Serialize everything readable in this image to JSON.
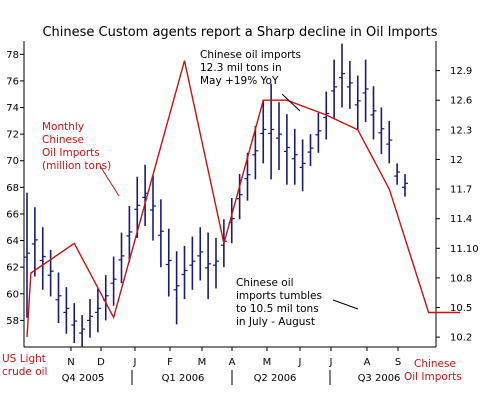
{
  "chart_data": {
    "type": "line",
    "title": "Chinese Custom agents report a Sharp decline in Oil Imports",
    "left_axis_title": [
      "US Light",
      "crude oil"
    ],
    "right_axis_title": [
      "Chinese",
      "Oil Imports"
    ],
    "left_axis": {
      "min": 56,
      "max": 79,
      "ticks": [
        58,
        60,
        62,
        64,
        66,
        68,
        70,
        72,
        74,
        76,
        78
      ]
    },
    "right_axis": {
      "min": 10.1,
      "max": 13.2,
      "ticks": [
        "10.2",
        "10.5",
        "10.8",
        "11.10",
        "11.4",
        "11.7",
        "12",
        "12.3",
        "12.6",
        "12.9"
      ]
    },
    "month_labels": [
      "N",
      "D",
      "J",
      "F",
      "M",
      "A",
      "M",
      "J",
      "J",
      "A",
      "S"
    ],
    "quarter_labels": [
      "Q4 2005",
      "Q1 2006",
      "Q2 2006",
      "Q3 2006"
    ],
    "colors": {
      "price_bars": "#1a1a7a",
      "imports_line": "#cc1111",
      "axis_title": "#cc1111",
      "annotation": "#000000"
    },
    "annotations": {
      "monthly": [
        "Monthly",
        "Chinese",
        "Oil Imports",
        "(million tons)"
      ],
      "top": [
        "Chinese oil imports",
        "12.3 mil tons in",
        "May +19% YoY"
      ],
      "bottom": [
        "Chinese oil",
        "imports tumbles",
        "to 10.5 mil tons",
        "in July - August"
      ]
    },
    "series": [
      {
        "name": "US Light crude oil",
        "kind": "weekly high-low bars",
        "data": [
          {
            "h": 67.6,
            "l": 58.2
          },
          {
            "h": 66.5,
            "l": 61.3
          },
          {
            "h": 65.0,
            "l": 60.3
          },
          {
            "h": 63.3,
            "l": 59.8
          },
          {
            "h": 61.6,
            "l": 57.8
          },
          {
            "h": 60.5,
            "l": 57.0
          },
          {
            "h": 59.3,
            "l": 56.3
          },
          {
            "h": 58.4,
            "l": 56.0
          },
          {
            "h": 59.6,
            "l": 56.7
          },
          {
            "h": 60.4,
            "l": 57.1
          },
          {
            "h": 61.4,
            "l": 58.0
          },
          {
            "h": 62.8,
            "l": 59.1
          },
          {
            "h": 64.6,
            "l": 60.8
          },
          {
            "h": 66.6,
            "l": 62.4
          },
          {
            "h": 68.8,
            "l": 64.2
          },
          {
            "h": 69.7,
            "l": 65.1
          },
          {
            "h": 68.9,
            "l": 64.0
          },
          {
            "h": 67.1,
            "l": 62.0
          },
          {
            "h": 64.9,
            "l": 59.8
          },
          {
            "h": 63.2,
            "l": 57.7
          },
          {
            "h": 63.6,
            "l": 59.6
          },
          {
            "h": 64.3,
            "l": 60.3
          },
          {
            "h": 65.0,
            "l": 61.0
          },
          {
            "h": 64.6,
            "l": 59.6
          },
          {
            "h": 64.2,
            "l": 60.4
          },
          {
            "h": 65.6,
            "l": 62.0
          },
          {
            "h": 67.2,
            "l": 63.8
          },
          {
            "h": 69.0,
            "l": 65.6
          },
          {
            "h": 70.6,
            "l": 67.0
          },
          {
            "h": 72.6,
            "l": 68.6
          },
          {
            "h": 74.6,
            "l": 69.8
          },
          {
            "h": 75.8,
            "l": 68.6
          },
          {
            "h": 74.4,
            "l": 69.3
          },
          {
            "h": 73.5,
            "l": 68.2
          },
          {
            "h": 72.4,
            "l": 68.2
          },
          {
            "h": 71.6,
            "l": 67.7
          },
          {
            "h": 72.0,
            "l": 69.6
          },
          {
            "h": 73.6,
            "l": 70.6
          },
          {
            "h": 75.2,
            "l": 71.6
          },
          {
            "h": 77.6,
            "l": 73.2
          },
          {
            "h": 78.8,
            "l": 74.0
          },
          {
            "h": 77.5,
            "l": 73.9
          },
          {
            "h": 76.4,
            "l": 72.3
          },
          {
            "h": 77.6,
            "l": 72.9
          },
          {
            "h": 75.6,
            "l": 71.6
          },
          {
            "h": 74.0,
            "l": 70.5
          },
          {
            "h": 73.0,
            "l": 69.8
          },
          {
            "h": 69.8,
            "l": 68.2
          },
          {
            "h": 69.0,
            "l": 67.3
          }
        ]
      },
      {
        "name": "Chinese Oil Imports",
        "kind": "monthly line",
        "points": [
          {
            "t": 0,
            "v": 10.2
          },
          {
            "t": 0.5,
            "v": 10.85
          },
          {
            "t": 6,
            "v": 11.15
          },
          {
            "t": 11,
            "v": 10.4
          },
          {
            "t": 20,
            "v": 13.0
          },
          {
            "t": 25,
            "v": 11.15
          },
          {
            "t": 30,
            "v": 12.6
          },
          {
            "t": 33,
            "v": 12.6
          },
          {
            "t": 38,
            "v": 12.45
          },
          {
            "t": 42,
            "v": 12.3
          },
          {
            "t": 46,
            "v": 11.7
          },
          {
            "t": 51,
            "v": 10.45
          },
          {
            "t": 55,
            "v": 10.45
          }
        ]
      }
    ]
  }
}
